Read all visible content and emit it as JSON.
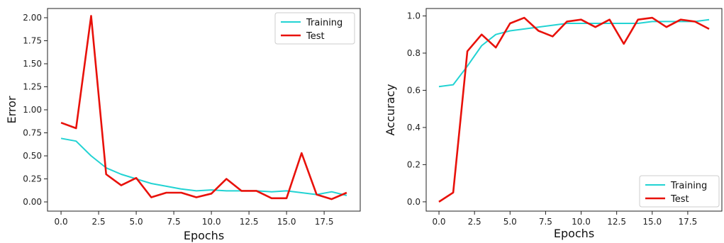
{
  "chart_data": [
    {
      "type": "line",
      "xlabel": "Epochs",
      "ylabel": "Error",
      "xlim": [
        -0.9,
        19.9
      ],
      "ylim": [
        -0.1,
        2.1
      ],
      "xticks": [
        0.0,
        2.5,
        5.0,
        7.5,
        10.0,
        12.5,
        15.0,
        17.5
      ],
      "xtick_labels": [
        "0.0",
        "2.5",
        "5.0",
        "7.5",
        "10.0",
        "12.5",
        "15.0",
        "17.5"
      ],
      "yticks": [
        0.0,
        0.25,
        0.5,
        0.75,
        1.0,
        1.25,
        1.5,
        1.75,
        2.0
      ],
      "ytick_labels": [
        "0.00",
        "0.25",
        "0.50",
        "0.75",
        "1.00",
        "1.25",
        "1.50",
        "1.75",
        "2.00"
      ],
      "grid": false,
      "legend": "top-right",
      "x": [
        0,
        1,
        2,
        3,
        4,
        5,
        6,
        7,
        8,
        9,
        10,
        11,
        12,
        13,
        14,
        15,
        16,
        17,
        18,
        19
      ],
      "series": [
        {
          "name": "Training",
          "color": "#22d3d3",
          "values": [
            0.69,
            0.66,
            0.5,
            0.37,
            0.3,
            0.25,
            0.2,
            0.17,
            0.14,
            0.12,
            0.13,
            0.12,
            0.12,
            0.12,
            0.11,
            0.12,
            0.1,
            0.08,
            0.11,
            0.07
          ]
        },
        {
          "name": "Test",
          "color": "#e8110a",
          "values": [
            0.86,
            0.8,
            2.02,
            0.3,
            0.18,
            0.26,
            0.05,
            0.1,
            0.1,
            0.05,
            0.09,
            0.25,
            0.12,
            0.12,
            0.04,
            0.04,
            0.53,
            0.08,
            0.03,
            0.1
          ]
        }
      ]
    },
    {
      "type": "line",
      "xlabel": "Epochs",
      "ylabel": "Accuracy",
      "xlim": [
        -0.9,
        19.9
      ],
      "ylim": [
        -0.05,
        1.04
      ],
      "xticks": [
        0.0,
        2.5,
        5.0,
        7.5,
        10.0,
        12.5,
        15.0,
        17.5
      ],
      "xtick_labels": [
        "0.0",
        "2.5",
        "5.0",
        "7.5",
        "10.0",
        "12.5",
        "15.0",
        "17.5"
      ],
      "yticks": [
        0.0,
        0.2,
        0.4,
        0.6,
        0.8,
        1.0
      ],
      "ytick_labels": [
        "0.0",
        "0.2",
        "0.4",
        "0.6",
        "0.8",
        "1.0"
      ],
      "grid": false,
      "legend": "bottom-right",
      "x": [
        0,
        1,
        2,
        3,
        4,
        5,
        6,
        7,
        8,
        9,
        10,
        11,
        12,
        13,
        14,
        15,
        16,
        17,
        18,
        19
      ],
      "series": [
        {
          "name": "Training",
          "color": "#22d3d3",
          "values": [
            0.62,
            0.63,
            0.73,
            0.84,
            0.9,
            0.92,
            0.93,
            0.94,
            0.95,
            0.96,
            0.96,
            0.96,
            0.96,
            0.96,
            0.96,
            0.97,
            0.97,
            0.97,
            0.97,
            0.98
          ]
        },
        {
          "name": "Test",
          "color": "#e8110a",
          "values": [
            0.0,
            0.05,
            0.81,
            0.9,
            0.83,
            0.96,
            0.99,
            0.92,
            0.89,
            0.97,
            0.98,
            0.94,
            0.98,
            0.85,
            0.98,
            0.99,
            0.94,
            0.98,
            0.97,
            0.93
          ]
        }
      ]
    }
  ]
}
